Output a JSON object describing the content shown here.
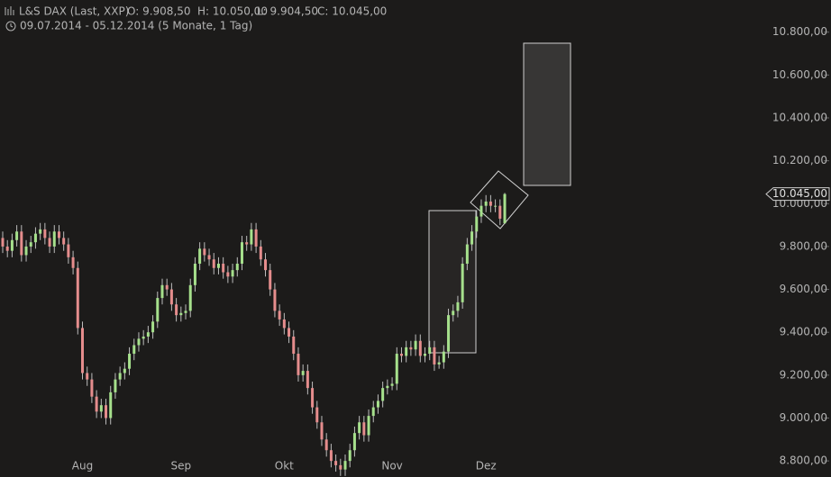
{
  "chart_data": {
    "type": "candlestick",
    "header": {
      "instrument": "L&S DAX (Last, XXP)",
      "open": "O: 9.908,50",
      "high": "H: 10.050,00",
      "low": "L: 9.904,50",
      "close": "C: 10.045,00",
      "period": "09.07.2014 - 05.12.2014 (5 Monate, 1 Tag)"
    },
    "last_label": "10.045,00",
    "up_color": "#a6e08c",
    "down_color": "#e58d8d",
    "ylim": [
      8725,
      10950
    ],
    "yticks": [
      {
        "value": 8800,
        "label": "8.800,00"
      },
      {
        "value": 9000,
        "label": "9.000,00"
      },
      {
        "value": 9200,
        "label": "9.200,00"
      },
      {
        "value": 9400,
        "label": "9.400,00"
      },
      {
        "value": 9600,
        "label": "9.600,00"
      },
      {
        "value": 9800,
        "label": "9.800,00"
      },
      {
        "value": 10000,
        "label": "10.000,00"
      },
      {
        "value": 10200,
        "label": "10.200,00"
      },
      {
        "value": 10400,
        "label": "10.400,00"
      },
      {
        "value": 10600,
        "label": "10.600,00"
      },
      {
        "value": 10800,
        "label": "10.800,00"
      }
    ],
    "categories": [
      null,
      null,
      null,
      null,
      null,
      null,
      null,
      null,
      null,
      null,
      null,
      null,
      null,
      null,
      null,
      null,
      null,
      "Aug",
      null,
      null,
      null,
      null,
      null,
      null,
      null,
      null,
      null,
      null,
      null,
      null,
      null,
      null,
      null,
      null,
      null,
      null,
      null,
      null,
      "Sep",
      null,
      null,
      null,
      null,
      null,
      null,
      null,
      null,
      null,
      null,
      null,
      null,
      null,
      null,
      null,
      null,
      null,
      null,
      null,
      null,
      null,
      "Okt",
      null,
      null,
      null,
      null,
      null,
      null,
      null,
      null,
      null,
      null,
      null,
      null,
      null,
      null,
      null,
      null,
      null,
      null,
      null,
      null,
      null,
      null,
      "Nov",
      null,
      null,
      null,
      null,
      null,
      null,
      null,
      null,
      null,
      null,
      null,
      null,
      null,
      null,
      null,
      null,
      null,
      null,
      null,
      "Dez",
      null,
      null,
      null,
      null
    ],
    "ohlc": [
      [
        9840,
        9870,
        9770,
        9800
      ],
      [
        9800,
        9830,
        9750,
        9780
      ],
      [
        9780,
        9860,
        9750,
        9830
      ],
      [
        9830,
        9900,
        9800,
        9870
      ],
      [
        9870,
        9900,
        9730,
        9760
      ],
      [
        9760,
        9830,
        9730,
        9800
      ],
      [
        9800,
        9850,
        9770,
        9820
      ],
      [
        9820,
        9890,
        9790,
        9860
      ],
      [
        9860,
        9910,
        9830,
        9880
      ],
      [
        9880,
        9910,
        9810,
        9840
      ],
      [
        9840,
        9870,
        9770,
        9800
      ],
      [
        9800,
        9900,
        9770,
        9870
      ],
      [
        9870,
        9900,
        9810,
        9840
      ],
      [
        9840,
        9870,
        9780,
        9810
      ],
      [
        9810,
        9840,
        9720,
        9750
      ],
      [
        9750,
        9780,
        9670,
        9700
      ],
      [
        9700,
        9730,
        9390,
        9420
      ],
      [
        9420,
        9450,
        9180,
        9210
      ],
      [
        9210,
        9240,
        9150,
        9180
      ],
      [
        9180,
        9210,
        9070,
        9100
      ],
      [
        9100,
        9130,
        9000,
        9030
      ],
      [
        9030,
        9090,
        9000,
        9060
      ],
      [
        9060,
        9090,
        8970,
        9000
      ],
      [
        9000,
        9150,
        8970,
        9120
      ],
      [
        9120,
        9210,
        9090,
        9180
      ],
      [
        9180,
        9240,
        9150,
        9210
      ],
      [
        9210,
        9260,
        9180,
        9230
      ],
      [
        9230,
        9330,
        9200,
        9300
      ],
      [
        9300,
        9370,
        9270,
        9340
      ],
      [
        9340,
        9400,
        9310,
        9370
      ],
      [
        9370,
        9410,
        9340,
        9380
      ],
      [
        9380,
        9430,
        9350,
        9400
      ],
      [
        9400,
        9480,
        9370,
        9450
      ],
      [
        9450,
        9590,
        9420,
        9560
      ],
      [
        9560,
        9650,
        9530,
        9620
      ],
      [
        9620,
        9650,
        9570,
        9600
      ],
      [
        9600,
        9630,
        9500,
        9530
      ],
      [
        9530,
        9560,
        9450,
        9480
      ],
      [
        9480,
        9520,
        9450,
        9490
      ],
      [
        9490,
        9530,
        9460,
        9500
      ],
      [
        9500,
        9650,
        9470,
        9620
      ],
      [
        9620,
        9750,
        9590,
        9720
      ],
      [
        9720,
        9820,
        9690,
        9790
      ],
      [
        9790,
        9820,
        9730,
        9760
      ],
      [
        9760,
        9790,
        9710,
        9740
      ],
      [
        9740,
        9770,
        9670,
        9700
      ],
      [
        9700,
        9750,
        9670,
        9720
      ],
      [
        9720,
        9750,
        9650,
        9680
      ],
      [
        9680,
        9710,
        9630,
        9660
      ],
      [
        9660,
        9720,
        9630,
        9690
      ],
      [
        9690,
        9750,
        9660,
        9720
      ],
      [
        9720,
        9850,
        9690,
        9820
      ],
      [
        9820,
        9850,
        9780,
        9810
      ],
      [
        9810,
        9910,
        9780,
        9880
      ],
      [
        9880,
        9910,
        9770,
        9800
      ],
      [
        9800,
        9830,
        9710,
        9740
      ],
      [
        9740,
        9770,
        9660,
        9690
      ],
      [
        9690,
        9720,
        9570,
        9600
      ],
      [
        9600,
        9630,
        9470,
        9500
      ],
      [
        9500,
        9530,
        9430,
        9460
      ],
      [
        9460,
        9490,
        9390,
        9420
      ],
      [
        9420,
        9450,
        9350,
        9380
      ],
      [
        9380,
        9410,
        9270,
        9300
      ],
      [
        9300,
        9330,
        9170,
        9200
      ],
      [
        9200,
        9250,
        9170,
        9220
      ],
      [
        9220,
        9250,
        9110,
        9140
      ],
      [
        9140,
        9170,
        9020,
        9050
      ],
      [
        9050,
        9080,
        8950,
        8980
      ],
      [
        8980,
        9010,
        8870,
        8900
      ],
      [
        8900,
        8930,
        8820,
        8850
      ],
      [
        8850,
        8880,
        8770,
        8800
      ],
      [
        8800,
        8830,
        8750,
        8780
      ],
      [
        8780,
        8810,
        8730,
        8760
      ],
      [
        8760,
        8830,
        8730,
        8800
      ],
      [
        8800,
        8880,
        8770,
        8850
      ],
      [
        8850,
        8960,
        8820,
        8930
      ],
      [
        8930,
        9010,
        8900,
        8980
      ],
      [
        8980,
        9010,
        8890,
        8920
      ],
      [
        8920,
        9040,
        8890,
        9010
      ],
      [
        9010,
        9080,
        8980,
        9050
      ],
      [
        9050,
        9110,
        9020,
        9080
      ],
      [
        9080,
        9170,
        9050,
        9140
      ],
      [
        9140,
        9180,
        9110,
        9150
      ],
      [
        9150,
        9190,
        9130,
        9160
      ],
      [
        9160,
        9330,
        9130,
        9300
      ],
      [
        9300,
        9330,
        9260,
        9290
      ],
      [
        9290,
        9360,
        9260,
        9330
      ],
      [
        9330,
        9360,
        9290,
        9320
      ],
      [
        9320,
        9390,
        9290,
        9360
      ],
      [
        9360,
        9390,
        9260,
        9290
      ],
      [
        9290,
        9330,
        9260,
        9300
      ],
      [
        9300,
        9360,
        9270,
        9330
      ],
      [
        9330,
        9360,
        9220,
        9250
      ],
      [
        9250,
        9290,
        9230,
        9260
      ],
      [
        9260,
        9340,
        9230,
        9310
      ],
      [
        9310,
        9510,
        9280,
        9480
      ],
      [
        9480,
        9530,
        9450,
        9500
      ],
      [
        9500,
        9570,
        9470,
        9540
      ],
      [
        9540,
        9750,
        9510,
        9720
      ],
      [
        9720,
        9840,
        9690,
        9810
      ],
      [
        9810,
        9900,
        9780,
        9870
      ],
      [
        9870,
        9970,
        9840,
        9940
      ],
      [
        9940,
        10020,
        9910,
        9990
      ],
      [
        9990,
        10040,
        9960,
        10010
      ],
      [
        10010,
        10040,
        9960,
        9990
      ],
      [
        9990,
        10020,
        9960,
        9990
      ],
      [
        9990,
        10020,
        9900,
        9930
      ],
      [
        9908.5,
        10050,
        9904.5,
        10045
      ]
    ]
  }
}
